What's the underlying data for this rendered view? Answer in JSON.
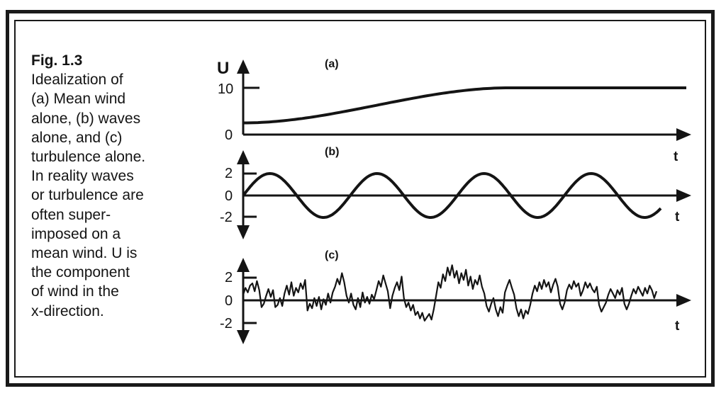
{
  "caption": {
    "figure_label": "Fig.  1.3",
    "lines": [
      "Idealization of",
      "(a) Mean wind",
      "alone, (b) waves",
      "alone, and (c)",
      "turbulence alone.",
      "In reality waves",
      "or turbulence are",
      "often super-",
      "imposed on a",
      "mean wind.  U is",
      "the component",
      "of wind in the",
      "x-direction."
    ]
  },
  "panels": {
    "a": {
      "label": "(a)",
      "y_axis_label": "U",
      "x_axis_label": "t",
      "y_ticks": [
        "10",
        "0"
      ],
      "description_values": {
        "start": 2.5,
        "end": 10
      }
    },
    "b": {
      "label": "(b)",
      "x_axis_label": "t",
      "y_ticks": [
        "2",
        "0",
        "-2"
      ],
      "amplitude": 2,
      "cycles": 3.9
    },
    "c": {
      "label": "(c)",
      "x_axis_label": "t",
      "y_ticks": [
        "2",
        "0",
        "-2"
      ],
      "signal": [
        0.5,
        1.1,
        0.7,
        1.3,
        1.5,
        0.8,
        1.7,
        0.9,
        -0.6,
        -0.3,
        0.4,
        1.0,
        0.3,
        0.9,
        -0.6,
        -0.4,
        0.2,
        -0.5,
        0.6,
        1.3,
        0.5,
        1.6,
        0.4,
        1.1,
        0.7,
        1.5,
        1.0,
        1.8,
        -0.9,
        -0.3,
        -0.7,
        0.2,
        -0.5,
        0.3,
        -0.8,
        0.1,
        -0.4,
        0.6,
        -0.2,
        0.7,
        1.2,
        1.9,
        1.4,
        2.4,
        1.6,
        0.4,
        -0.2,
        0.6,
        -0.4,
        -0.8,
        0.2,
        -0.6,
        0.7,
        -0.2,
        0.3,
        -0.3,
        0.5,
        0.1,
        0.9,
        1.7,
        1.2,
        2.2,
        1.5,
        0.8,
        -0.7,
        0.4,
        1.1,
        1.6,
        0.9,
        2.1,
        0.2,
        -0.6,
        -0.2,
        -0.9,
        -0.4,
        -1.3,
        -1.0,
        -1.6,
        -1.1,
        -1.8,
        -1.5,
        -1.2,
        -1.7,
        -0.8,
        0.4,
        1.6,
        1.1,
        2.3,
        1.7,
        2.9,
        2.2,
        3.1,
        2.0,
        2.6,
        1.5,
        2.4,
        1.8,
        2.7,
        1.3,
        2.1,
        1.0,
        1.8,
        1.4,
        2.2,
        1.2,
        0.6,
        -0.5,
        -1.0,
        -0.3,
        0.2,
        -0.8,
        -1.4,
        -0.6,
        -1.1,
        0.7,
        1.3,
        1.8,
        1.1,
        0.5,
        -0.7,
        -1.4,
        -0.8,
        -1.6,
        -0.9,
        -1.2,
        -0.4,
        0.6,
        1.3,
        0.8,
        1.6,
        1.0,
        1.8,
        1.2,
        1.6,
        0.7,
        1.4,
        1.9,
        1.2,
        -0.3,
        -0.8,
        -0.2,
        0.9,
        1.4,
        1.0,
        1.7,
        1.2,
        1.5,
        0.4,
        0.9,
        1.6,
        1.1,
        1.5,
        1.0,
        0.7,
        1.2,
        -0.4,
        -1.0,
        -0.6,
        -0.2,
        0.5,
        1.0,
        0.6,
        0.2,
        0.9,
        0.5,
        1.1,
        -0.3,
        -0.8,
        -0.3,
        0.4,
        1.0,
        0.6,
        1.2,
        0.8,
        0.4,
        1.1,
        0.6,
        1.3,
        0.9,
        0.2,
        0.8
      ]
    }
  },
  "colors": {
    "ink": "#141414",
    "background": "#ffffff"
  }
}
